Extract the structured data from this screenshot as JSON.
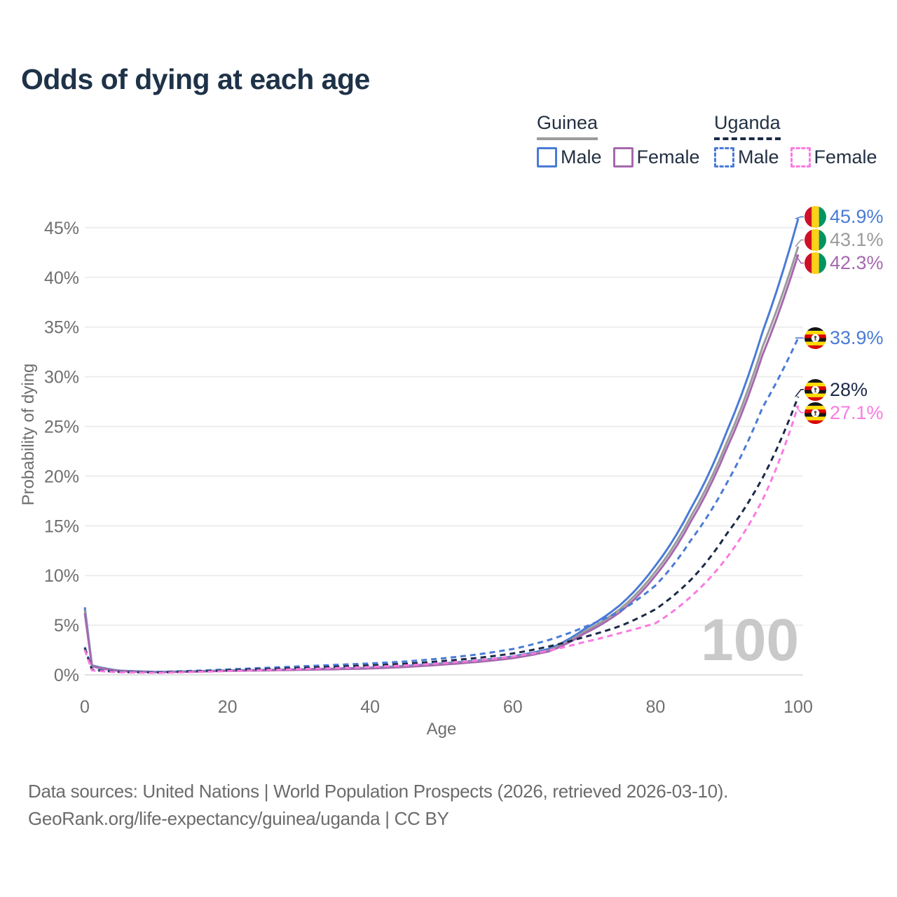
{
  "title": "Odds of dying at each age",
  "watermark": "100",
  "legend": {
    "guinea": {
      "title": "Guinea",
      "male_label": "Male",
      "female_label": "Female"
    },
    "uganda": {
      "title": "Uganda",
      "male_label": "Male",
      "female_label": "Female"
    }
  },
  "footer": {
    "line1": "Data sources: United Nations | World Population Prospects (2026, retrieved 2026-03-10).",
    "line2": "GeoRank.org/life-expectancy/guinea/uganda | CC BY"
  },
  "colors": {
    "blue": "#4a7bd6",
    "gray": "#9b9b9b",
    "purple": "#a569ae",
    "navy": "#1b2a47",
    "pink": "#fa7ae1",
    "title_text": "#1e3248",
    "legend_text": "#243144",
    "tick_text": "#6f6f6f",
    "gridline": "#ededed",
    "zero_gridline": "#e0e0e0",
    "watermark": "#c9c9c9",
    "footer_text": "#6b6b6b"
  },
  "chart_data": {
    "type": "line",
    "title": "Odds of dying at each age",
    "xlabel": "Age",
    "ylabel": "Probability of dying",
    "xlim": [
      0,
      100
    ],
    "ylim": [
      0,
      47
    ],
    "grid": "horizontal-only",
    "legend_position": "top-right",
    "x_ticks": [
      0,
      20,
      40,
      60,
      80,
      100
    ],
    "y_ticks": [
      {
        "v": 0,
        "label": "0%"
      },
      {
        "v": 5,
        "label": "5%"
      },
      {
        "v": 10,
        "label": "10%"
      },
      {
        "v": 15,
        "label": "15%"
      },
      {
        "v": 20,
        "label": "20%"
      },
      {
        "v": 25,
        "label": "25%"
      },
      {
        "v": 30,
        "label": "30%"
      },
      {
        "v": 35,
        "label": "35%"
      },
      {
        "v": 40,
        "label": "40%"
      },
      {
        "v": 45,
        "label": "45%"
      }
    ],
    "ages": [
      0,
      1,
      5,
      10,
      15,
      20,
      25,
      30,
      35,
      40,
      45,
      50,
      55,
      60,
      65,
      70,
      75,
      80,
      85,
      90,
      95,
      100
    ],
    "series": [
      {
        "id": "guinea-male",
        "name": "Guinea Male",
        "country": "Guinea",
        "sex": "Male",
        "style": "solid",
        "color": "#4a7bd6",
        "flag": "guinea",
        "end_label": "45.9%",
        "values": [
          6.8,
          0.95,
          0.42,
          0.3,
          0.36,
          0.45,
          0.5,
          0.56,
          0.63,
          0.72,
          0.9,
          1.15,
          1.45,
          1.85,
          2.6,
          4.6,
          7.0,
          11.0,
          16.8,
          24.5,
          34.5,
          45.9
        ]
      },
      {
        "id": "guinea-total",
        "name": "Guinea (both sexes)",
        "country": "Guinea",
        "sex": "Both",
        "style": "solid",
        "color": "#9b9b9b",
        "flag": "guinea",
        "end_label": "43.1%",
        "values": [
          6.5,
          0.9,
          0.4,
          0.28,
          0.34,
          0.42,
          0.47,
          0.53,
          0.59,
          0.68,
          0.85,
          1.08,
          1.38,
          1.75,
          2.45,
          4.35,
          6.6,
          10.4,
          16.0,
          23.4,
          33.0,
          43.1
        ]
      },
      {
        "id": "guinea-female",
        "name": "Guinea Female",
        "country": "Guinea",
        "sex": "Female",
        "style": "solid",
        "color": "#a569ae",
        "flag": "guinea",
        "end_label": "42.3%",
        "values": [
          6.2,
          0.85,
          0.38,
          0.26,
          0.32,
          0.4,
          0.44,
          0.5,
          0.56,
          0.64,
          0.8,
          1.02,
          1.3,
          1.68,
          2.35,
          4.15,
          6.3,
          10.0,
          15.5,
          22.8,
          32.2,
          42.3
        ]
      },
      {
        "id": "uganda-male",
        "name": "Uganda Male",
        "country": "Uganda",
        "sex": "Male",
        "style": "dashed",
        "color": "#4a7bd6",
        "flag": "uganda",
        "end_label": "33.9%",
        "values": [
          2.8,
          0.55,
          0.3,
          0.28,
          0.4,
          0.55,
          0.7,
          0.85,
          1.0,
          1.15,
          1.35,
          1.65,
          2.05,
          2.6,
          3.5,
          4.8,
          6.4,
          9.0,
          13.6,
          19.3,
          26.9,
          33.9
        ]
      },
      {
        "id": "uganda-total",
        "name": "Uganda (both sexes)",
        "country": "Uganda",
        "sex": "Both",
        "style": "dashed",
        "color": "#1b2a47",
        "flag": "uganda",
        "end_label": "28%",
        "values": [
          2.7,
          0.5,
          0.28,
          0.24,
          0.34,
          0.46,
          0.58,
          0.7,
          0.82,
          0.95,
          1.12,
          1.38,
          1.7,
          2.15,
          2.85,
          3.8,
          4.9,
          6.6,
          9.6,
          14.2,
          19.8,
          28.0
        ]
      },
      {
        "id": "uganda-female",
        "name": "Uganda Female",
        "country": "Uganda",
        "sex": "Female",
        "style": "dashed",
        "color": "#fa7ae1",
        "flag": "uganda",
        "end_label": "27.1%",
        "values": [
          2.5,
          0.45,
          0.25,
          0.2,
          0.28,
          0.38,
          0.48,
          0.58,
          0.68,
          0.8,
          0.95,
          1.18,
          1.45,
          1.85,
          2.45,
          3.3,
          4.2,
          5.2,
          7.9,
          11.8,
          17.6,
          27.1
        ]
      }
    ]
  }
}
